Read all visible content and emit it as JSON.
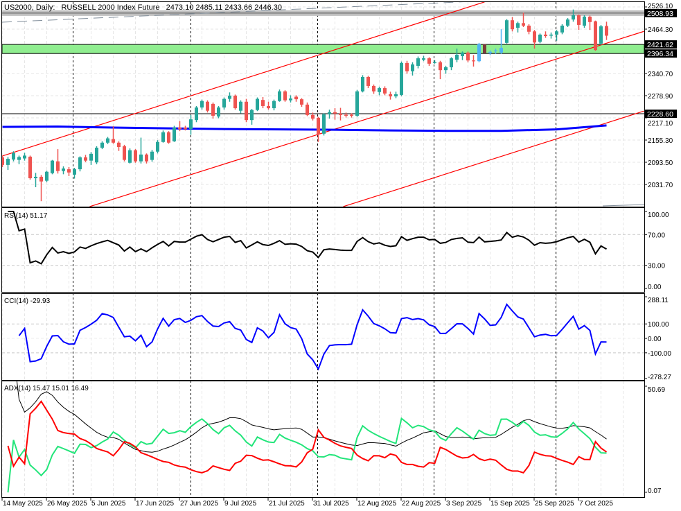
{
  "header": {
    "symbol": "US2000, Daily:",
    "instrument": "RUSSELL 2000 Index Future",
    "ohlc": "2473.10 2485.11 2433.66 2446.30"
  },
  "colors": {
    "up": "#26a69a",
    "down": "#ef5350",
    "zone_up": "#4fb3f5",
    "zone_down": "#7b3b3b",
    "ma": "#0000ff",
    "channel": "#ff0000",
    "zone_fill": "#90ee90",
    "resistance_band": "#c0c0c0",
    "rsi": "#000000",
    "cci": "#0000ff",
    "adx": "#000000",
    "plus_di": "#22e57a",
    "minus_di": "#ff0000"
  },
  "chart_data": {
    "type": "candlestick",
    "title": "US2000, Daily: RUSSELL 2000 Index Future",
    "ylim": [
      1969.9,
      2539.6
    ],
    "price_ticks": [
      "2526.10",
      "2464.30",
      "2340.70",
      "2278.90",
      "2217.10",
      "2155.30",
      "2093.50",
      "2031.70"
    ],
    "levels": {
      "resistance": {
        "value": 2508.93,
        "label": "2508.93"
      },
      "zone_top": {
        "value": 2421.62,
        "label": "2421.62"
      },
      "zone_bottom": {
        "value": 2396.34,
        "label": "2396.34"
      },
      "support": {
        "value": 2228.6,
        "label": "2228.60"
      }
    },
    "date_labels": [
      "14 May 2025",
      "26 May 2025",
      "5 Jun 2025",
      "17 Jun 2025",
      "27 Jun 2025",
      "9 Jul 2025",
      "21 Jul 2025",
      "31 Jul 2025",
      "12 Aug 2025",
      "22 Aug 2025",
      "3 Sep 2025",
      "15 Sep 2025",
      "25 Sep 2025",
      "7 Oct 2025"
    ],
    "zone_candles": {
      "up": [
        86,
        88,
        89,
        90
      ],
      "down": [
        87
      ]
    },
    "candles": [
      [
        2107,
        2112,
        2080,
        2086
      ],
      [
        2086,
        2108,
        2072,
        2103
      ],
      [
        2101,
        2124,
        2096,
        2119
      ],
      [
        2100,
        2112,
        2088,
        2108
      ],
      [
        2104,
        2120,
        2098,
        2112
      ],
      [
        2109,
        2112,
        2045,
        2049
      ],
      [
        2049,
        2064,
        2024,
        2053
      ],
      [
        2053,
        2058,
        1985,
        2040
      ],
      [
        2042,
        2070,
        2038,
        2067
      ],
      [
        2063,
        2100,
        2060,
        2098
      ],
      [
        2096,
        2130,
        2062,
        2069
      ],
      [
        2069,
        2082,
        2060,
        2076
      ],
      [
        2074,
        2080,
        2055,
        2065
      ],
      [
        2059,
        2078,
        2048,
        2074
      ],
      [
        2074,
        2110,
        2068,
        2107
      ],
      [
        2107,
        2114,
        2094,
        2098
      ],
      [
        2098,
        2122,
        2086,
        2117
      ],
      [
        2093,
        2138,
        2088,
        2134
      ],
      [
        2134,
        2152,
        2130,
        2148
      ],
      [
        2148,
        2164,
        2144,
        2160
      ],
      [
        2158,
        2194,
        2145,
        2148
      ],
      [
        2148,
        2152,
        2125,
        2136
      ],
      [
        2138,
        2142,
        2096,
        2100
      ],
      [
        2092,
        2132,
        2090,
        2127
      ],
      [
        2127,
        2130,
        2092,
        2096
      ],
      [
        2096,
        2162,
        2090,
        2115
      ],
      [
        2115,
        2118,
        2090,
        2096
      ],
      [
        2100,
        2128,
        2095,
        2123
      ],
      [
        2123,
        2155,
        2118,
        2150
      ],
      [
        2150,
        2182,
        2148,
        2177
      ],
      [
        2177,
        2180,
        2145,
        2148
      ],
      [
        2152,
        2195,
        2150,
        2190
      ],
      [
        2190,
        2208,
        2180,
        2186
      ],
      [
        2190,
        2195,
        2182,
        2186
      ],
      [
        2186,
        2225,
        2170,
        2213
      ],
      [
        2211,
        2250,
        2205,
        2246
      ],
      [
        2246,
        2268,
        2240,
        2264
      ],
      [
        2262,
        2266,
        2232,
        2237
      ],
      [
        2256,
        2260,
        2215,
        2223
      ],
      [
        2221,
        2250,
        2216,
        2246
      ],
      [
        2246,
        2274,
        2240,
        2270
      ],
      [
        2270,
        2288,
        2262,
        2279
      ],
      [
        2279,
        2282,
        2240,
        2244
      ],
      [
        2237,
        2266,
        2230,
        2262
      ],
      [
        2262,
        2270,
        2205,
        2211
      ],
      [
        2211,
        2242,
        2198,
        2239
      ],
      [
        2239,
        2274,
        2236,
        2270
      ],
      [
        2267,
        2275,
        2244,
        2250
      ],
      [
        2250,
        2262,
        2240,
        2244
      ],
      [
        2244,
        2268,
        2238,
        2264
      ],
      [
        2264,
        2296,
        2262,
        2291
      ],
      [
        2291,
        2294,
        2262,
        2266
      ],
      [
        2266,
        2280,
        2260,
        2271
      ],
      [
        2276,
        2280,
        2262,
        2269
      ],
      [
        2269,
        2272,
        2248,
        2254
      ],
      [
        2254,
        2260,
        2222,
        2225
      ],
      [
        2225,
        2232,
        2210,
        2215
      ],
      [
        2217,
        2220,
        2150,
        2171
      ],
      [
        2173,
        2230,
        2168,
        2227
      ],
      [
        2227,
        2240,
        2215,
        2233
      ],
      [
        2233,
        2244,
        2212,
        2229
      ],
      [
        2229,
        2245,
        2210,
        2225
      ],
      [
        2226,
        2232,
        2218,
        2223
      ],
      [
        2226,
        2230,
        2218,
        2223
      ],
      [
        2223,
        2295,
        2220,
        2291
      ],
      [
        2291,
        2336,
        2288,
        2331
      ],
      [
        2331,
        2334,
        2300,
        2306
      ],
      [
        2306,
        2310,
        2284,
        2291
      ],
      [
        2289,
        2304,
        2280,
        2300
      ],
      [
        2300,
        2305,
        2280,
        2285
      ],
      [
        2283,
        2290,
        2268,
        2277
      ],
      [
        2277,
        2290,
        2272,
        2283
      ],
      [
        2281,
        2374,
        2278,
        2370
      ],
      [
        2370,
        2376,
        2340,
        2347
      ],
      [
        2347,
        2372,
        2335,
        2366
      ],
      [
        2362,
        2388,
        2355,
        2383
      ],
      [
        2379,
        2390,
        2375,
        2383
      ],
      [
        2383,
        2386,
        2362,
        2368
      ],
      [
        2372,
        2378,
        2368,
        2372
      ],
      [
        2372,
        2376,
        2325,
        2350
      ],
      [
        2350,
        2362,
        2340,
        2358
      ],
      [
        2358,
        2386,
        2350,
        2383
      ],
      [
        2379,
        2410,
        2372,
        2393
      ],
      [
        2389,
        2402,
        2378,
        2399
      ],
      [
        2399,
        2402,
        2372,
        2377
      ],
      [
        2377,
        2392,
        2360,
        2375
      ],
      [
        2375,
        2426,
        2372,
        2422
      ],
      [
        2422,
        2422,
        2397,
        2397
      ],
      [
        2397,
        2405,
        2392,
        2401
      ],
      [
        2403,
        2410,
        2395,
        2405
      ],
      [
        2399,
        2464,
        2395,
        2412
      ],
      [
        2426,
        2492,
        2424,
        2489
      ],
      [
        2489,
        2498,
        2458,
        2464
      ],
      [
        2468,
        2485,
        2455,
        2481
      ],
      [
        2481,
        2510,
        2470,
        2474
      ],
      [
        2474,
        2478,
        2450,
        2457
      ],
      [
        2458,
        2462,
        2410,
        2427
      ],
      [
        2429,
        2452,
        2425,
        2449
      ],
      [
        2449,
        2458,
        2440,
        2445
      ],
      [
        2446,
        2455,
        2438,
        2449
      ],
      [
        2449,
        2462,
        2432,
        2458
      ],
      [
        2455,
        2478,
        2450,
        2474
      ],
      [
        2474,
        2495,
        2470,
        2491
      ],
      [
        2491,
        2519,
        2485,
        2503
      ],
      [
        2503,
        2505,
        2462,
        2476
      ],
      [
        2474,
        2503,
        2468,
        2499
      ],
      [
        2499,
        2502,
        2462,
        2484
      ],
      [
        2486,
        2488,
        2404,
        2406
      ],
      [
        2424,
        2476,
        2420,
        2472
      ],
      [
        2473,
        2485,
        2434,
        2446
      ]
    ],
    "moving_average": [
      [
        0,
        2192
      ],
      [
        10,
        2193
      ],
      [
        20,
        2190
      ],
      [
        30,
        2188
      ],
      [
        40,
        2186
      ],
      [
        50,
        2185
      ],
      [
        60,
        2184
      ],
      [
        70,
        2182
      ],
      [
        80,
        2181
      ],
      [
        90,
        2181
      ],
      [
        100,
        2185
      ],
      [
        109,
        2196
      ]
    ],
    "trend_lines": [
      {
        "name": "channel-upper",
        "from": [
          0,
          2111
        ],
        "to": [
          87,
          2540
        ]
      },
      {
        "name": "channel-middle",
        "from": [
          15.75,
          1970
        ],
        "to": [
          115.75,
          2458
        ]
      },
      {
        "name": "channel-lower",
        "from": [
          61.5,
          1970
        ],
        "to": [
          115.75,
          2236
        ]
      }
    ],
    "indicators": {
      "rsi": {
        "label": "RSI(14) 51.17",
        "period": 14,
        "ylim": [
          0,
          100
        ],
        "ticks": [
          "100.00",
          "70.00",
          "30.00",
          "0.00"
        ]
      },
      "cci": {
        "label": "CCI(14) -29.93",
        "period": 14,
        "ylim": [
          -278.27,
          288.11
        ],
        "ticks": [
          "288.11",
          "100.00",
          "0.00",
          "-100.00",
          "-278.27"
        ]
      },
      "adx": {
        "label": "ADX(14) 15.47 15.01 16.49",
        "period": 14,
        "ylim": [
          0.07,
          50.69
        ],
        "ticks": [
          "50.69",
          "0.07"
        ]
      }
    }
  }
}
